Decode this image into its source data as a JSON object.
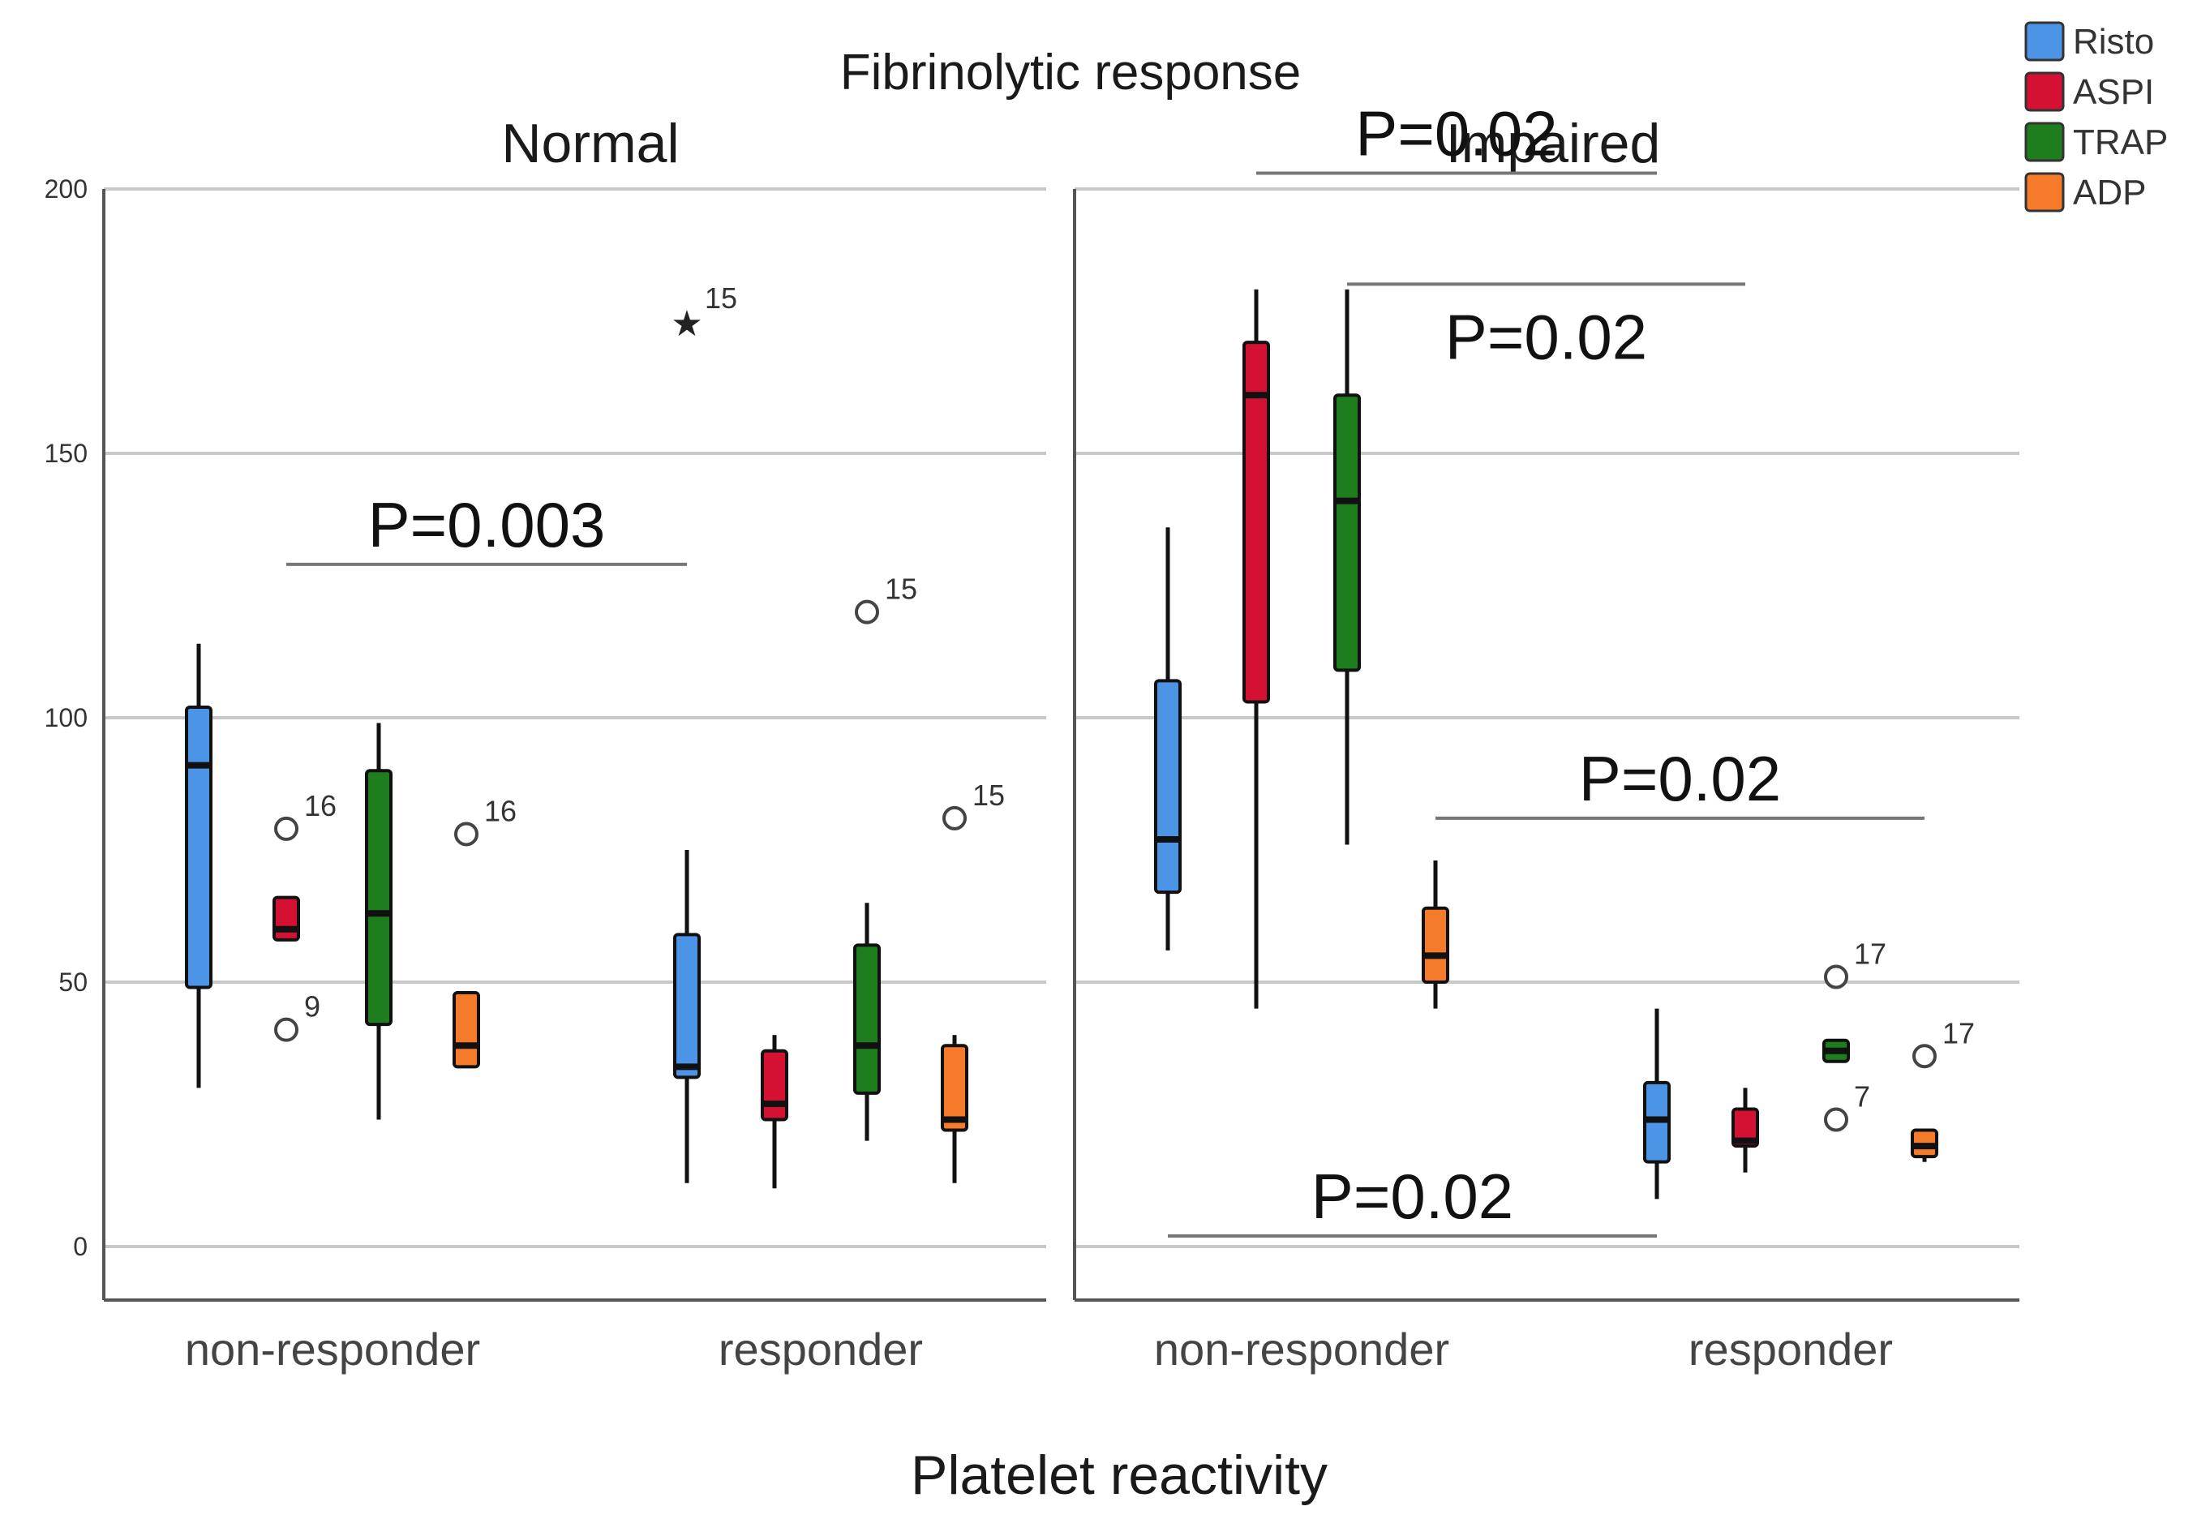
{
  "chart_data": {
    "type": "boxplot",
    "title": "Fibrinolytic response",
    "xlabel": "Platelet reactivity",
    "ylabel": "",
    "ylim": [
      -10,
      210
    ],
    "yticks": [
      "0",
      "50",
      "100",
      "150",
      "200"
    ],
    "ytick_values": [
      0,
      50,
      100,
      150,
      200
    ],
    "categories": [
      "non-responder",
      "responder"
    ],
    "legend": [
      {
        "name": "Risto",
        "color": "#4c94e6"
      },
      {
        "name": "ASPI",
        "color": "#d41133"
      },
      {
        "name": "TRAP",
        "color": "#1e7e1e"
      },
      {
        "name": "ADP",
        "color": "#f57a2a"
      }
    ],
    "panels": [
      {
        "name": "Normal",
        "groups": [
          {
            "category": "non-responder",
            "boxes": [
              {
                "series": "Risto",
                "min": 30,
                "q1": 49,
                "median": 91,
                "q3": 102,
                "max": 114,
                "outliers": []
              },
              {
                "series": "ASPI",
                "min": 58,
                "q1": 58,
                "median": 60,
                "q3": 66,
                "max": 66,
                "outliers": [
                  {
                    "value": 79,
                    "label": "16",
                    "marker": "circle"
                  },
                  {
                    "value": 41,
                    "label": "9",
                    "marker": "circle"
                  }
                ]
              },
              {
                "series": "TRAP",
                "min": 24,
                "q1": 42,
                "median": 63,
                "q3": 90,
                "max": 99,
                "outliers": []
              },
              {
                "series": "ADP",
                "min": 34,
                "q1": 34,
                "median": 38,
                "q3": 48,
                "max": 48,
                "outliers": [
                  {
                    "value": 78,
                    "label": "16",
                    "marker": "circle"
                  }
                ]
              }
            ]
          },
          {
            "category": "responder",
            "boxes": [
              {
                "series": "Risto",
                "min": 12,
                "q1": 32,
                "median": 34,
                "q3": 59,
                "max": 75,
                "outliers": [
                  {
                    "value": 175,
                    "label": "15",
                    "marker": "star"
                  }
                ]
              },
              {
                "series": "ASPI",
                "min": 11,
                "q1": 24,
                "median": 27,
                "q3": 37,
                "max": 40,
                "outliers": []
              },
              {
                "series": "TRAP",
                "min": 20,
                "q1": 29,
                "median": 38,
                "q3": 57,
                "max": 65,
                "outliers": [
                  {
                    "value": 120,
                    "label": "15",
                    "marker": "circle"
                  }
                ]
              },
              {
                "series": "ADP",
                "min": 12,
                "q1": 22,
                "median": 24,
                "q3": 38,
                "max": 40,
                "outliers": [
                  {
                    "value": 81,
                    "label": "15",
                    "marker": "circle"
                  }
                ]
              }
            ]
          }
        ],
        "annotations": [
          {
            "text": "P=0.003",
            "y": 129,
            "from_group": 0,
            "from_series": 1,
            "to_group": 1,
            "to_series": 0
          }
        ]
      },
      {
        "name": "Impaired",
        "groups": [
          {
            "category": "non-responder",
            "boxes": [
              {
                "series": "Risto",
                "min": 56,
                "q1": 67,
                "median": 77,
                "q3": 107,
                "max": 136,
                "outliers": []
              },
              {
                "series": "ASPI",
                "min": 45,
                "q1": 103,
                "median": 161,
                "q3": 171,
                "max": 181,
                "outliers": []
              },
              {
                "series": "TRAP",
                "min": 76,
                "q1": 109,
                "median": 141,
                "q3": 161,
                "max": 181,
                "outliers": []
              },
              {
                "series": "ADP",
                "min": 45,
                "q1": 50,
                "median": 55,
                "q3": 64,
                "max": 73,
                "outliers": []
              }
            ]
          },
          {
            "category": "responder",
            "boxes": [
              {
                "series": "Risto",
                "min": 9,
                "q1": 16,
                "median": 24,
                "q3": 31,
                "max": 45,
                "outliers": []
              },
              {
                "series": "ASPI",
                "min": 14,
                "q1": 19,
                "median": 20,
                "q3": 26,
                "max": 30,
                "outliers": []
              },
              {
                "series": "TRAP",
                "min": 35,
                "q1": 35,
                "median": 37,
                "q3": 39,
                "max": 39,
                "outliers": [
                  {
                    "value": 51,
                    "label": "17",
                    "marker": "circle"
                  },
                  {
                    "value": 24,
                    "label": "7",
                    "marker": "circle"
                  }
                ]
              },
              {
                "series": "ADP",
                "min": 16,
                "q1": 17,
                "median": 19,
                "q3": 22,
                "max": 22,
                "outliers": [
                  {
                    "value": 36,
                    "label": "17",
                    "marker": "circle"
                  }
                ]
              }
            ]
          }
        ],
        "annotations": [
          {
            "text": "P=0.02",
            "y": 203,
            "from_group": 0,
            "from_series": 1,
            "to_group": 1,
            "to_series": 0
          },
          {
            "text": "P=0.02",
            "y": 182,
            "from_group": 0,
            "from_series": 2,
            "to_group": 1,
            "to_series": 1
          },
          {
            "text": "P=0.02",
            "y": 81,
            "from_group": 0,
            "from_series": 3,
            "to_group": 1,
            "to_series": 3
          },
          {
            "text": "P=0.02",
            "y": 2,
            "from_group": 0,
            "from_series": 0,
            "to_group": 1,
            "to_series": 0
          }
        ]
      }
    ]
  }
}
